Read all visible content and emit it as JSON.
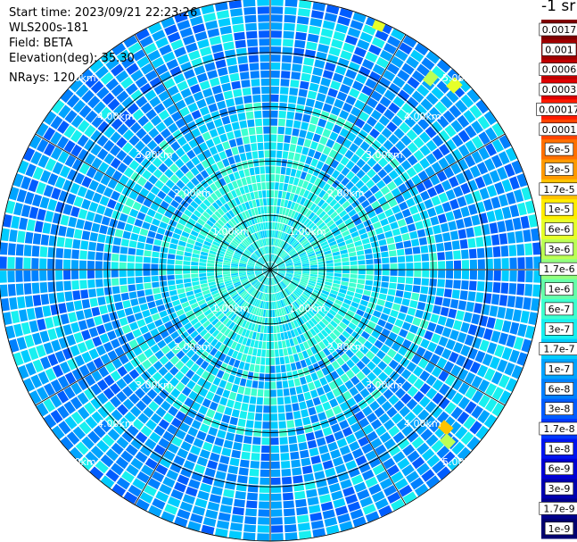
{
  "header": {
    "start_time": "Start time: 2023/09/21 22:23:26",
    "instrument": "WLS200s-181",
    "field": "Field: BETA",
    "elevation": "Elevation(deg): 35.30",
    "nrays": "NRays: 120"
  },
  "colorbar": {
    "units": "-1 sr",
    "levels": [
      {
        "label": "0.0017",
        "color": "#800000"
      },
      {
        "label": "0.001",
        "color": "#a00000"
      },
      {
        "label": "0.0006",
        "color": "#c00000"
      },
      {
        "label": "0.0003",
        "color": "#e00000"
      },
      {
        "label": "0.00017",
        "color": "#ff1a00"
      },
      {
        "label": "0.0001",
        "color": "#ff4500"
      },
      {
        "label": "6e-5",
        "color": "#ff7000"
      },
      {
        "label": "3e-5",
        "color": "#ff9a00"
      },
      {
        "label": "1.7e-5",
        "color": "#ffc400"
      },
      {
        "label": "1e-5",
        "color": "#ffee00"
      },
      {
        "label": "6e-6",
        "color": "#e6ff2a"
      },
      {
        "label": "3e-6",
        "color": "#bcff55"
      },
      {
        "label": "1.7e-6",
        "color": "#92ff7f"
      },
      {
        "label": "1e-6",
        "color": "#66ffaa"
      },
      {
        "label": "6e-7",
        "color": "#3dffd0"
      },
      {
        "label": "3e-7",
        "color": "#18f0f0"
      },
      {
        "label": "1.7e-7",
        "color": "#00ccff"
      },
      {
        "label": "1e-7",
        "color": "#00a4ff"
      },
      {
        "label": "6e-8",
        "color": "#0080ff"
      },
      {
        "label": "3e-8",
        "color": "#005cff"
      },
      {
        "label": "1.7e-8",
        "color": "#0038ff"
      },
      {
        "label": "1e-8",
        "color": "#0014f0"
      },
      {
        "label": "6e-9",
        "color": "#0000d4"
      },
      {
        "label": "3e-9",
        "color": "#0000b0"
      },
      {
        "label": "1.7e-9",
        "color": "#00008c"
      },
      {
        "label": "1e-9",
        "color": "#000070"
      }
    ]
  },
  "chart_data": {
    "type": "ppi",
    "field": "BETA",
    "elevation_deg": 35.3,
    "n_rays": 120,
    "range_rings_km": [
      1,
      2,
      3,
      4,
      5
    ],
    "ring_labels": [
      "1.00km",
      "2.00km",
      "3.00km",
      "4.00km",
      "5.00km"
    ],
    "max_range_km": 5.0,
    "azimuth_spokes_deg": [
      0,
      30,
      60,
      90,
      120,
      150,
      180,
      210,
      240,
      270,
      300,
      330
    ],
    "ring_label_bearings_deg": [
      45,
      135,
      225,
      315
    ],
    "hotspots": [
      {
        "azimuth_deg": 24,
        "range_km": 4.95,
        "level": "6e-6"
      },
      {
        "azimuth_deg": 40,
        "range_km": 4.6,
        "level": "3e-6"
      },
      {
        "azimuth_deg": 45,
        "range_km": 4.8,
        "level": "6e-6"
      },
      {
        "azimuth_deg": 132,
        "range_km": 4.35,
        "level": "1.7e-5"
      },
      {
        "azimuth_deg": 134,
        "range_km": 4.55,
        "level": "3e-6"
      }
    ]
  }
}
